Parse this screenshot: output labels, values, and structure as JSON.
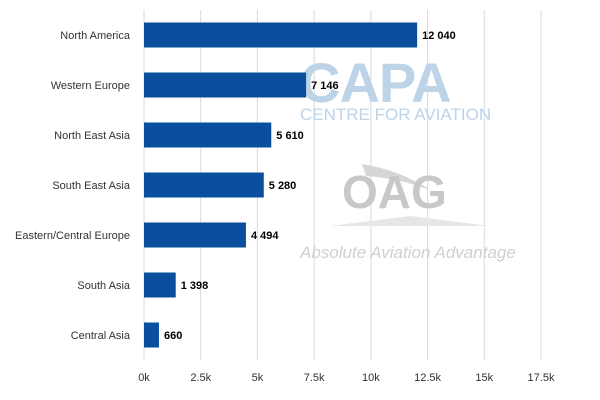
{
  "chart_data": {
    "type": "bar",
    "orientation": "horizontal",
    "categories": [
      "North America",
      "Western Europe",
      "North East Asia",
      "South East Asia",
      "Eastern/Central Europe",
      "South Asia",
      "Central Asia"
    ],
    "values": [
      12040,
      7146,
      5610,
      5280,
      4494,
      1398,
      660
    ],
    "value_labels": [
      "12 040",
      "7 146",
      "5 610",
      "5 280",
      "4 494",
      "1 398",
      "660"
    ],
    "xlim": [
      0,
      17500
    ],
    "x_ticks": [
      0,
      2500,
      5000,
      7500,
      10000,
      12500,
      15000,
      17500
    ],
    "x_tick_labels": [
      "0k",
      "2.5k",
      "5k",
      "7.5k",
      "10k",
      "12.5k",
      "15k",
      "17.5k"
    ],
    "grid": "vertical",
    "bar_color": "#0a4f9e",
    "grid_color": "#d9d9d9"
  },
  "watermarks": {
    "capa_title": "CAPA",
    "capa_subtitle": "CENTRE FOR AVIATION",
    "oag_title": "OAG",
    "oag_subtitle": "Absolute Aviation Advantage"
  }
}
